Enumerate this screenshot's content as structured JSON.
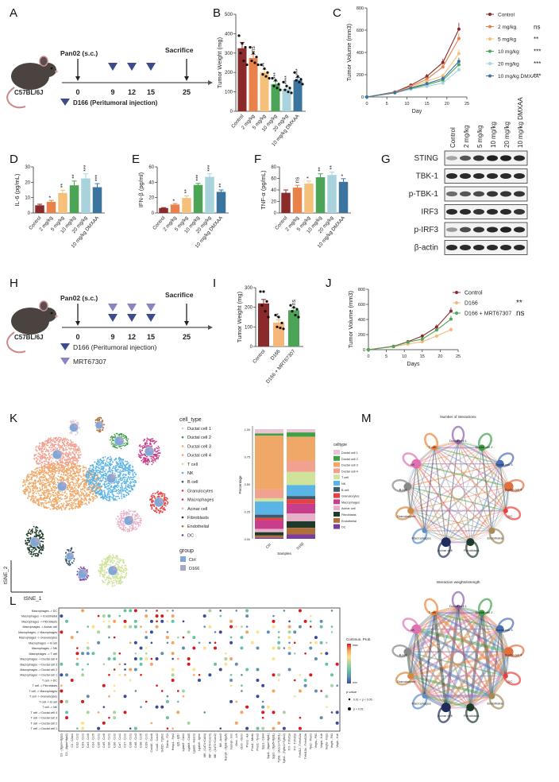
{
  "panel_labels": {
    "A": "A",
    "B": "B",
    "C": "C",
    "D": "D",
    "E": "E",
    "F": "F",
    "G": "G",
    "H": "H",
    "I": "I",
    "J": "J",
    "K": "K",
    "L": "L",
    "M": "M"
  },
  "schematic_A": {
    "strain": "C57BL/6J",
    "inoculation": "Pan02 (s.c.)",
    "endpoint": "Sacrifice",
    "days": [
      "0",
      "9",
      "12",
      "15",
      "25"
    ],
    "legend": [
      {
        "label": "D166 (Peritumoral injection)",
        "color": "#3d4a8c"
      }
    ]
  },
  "schematic_H": {
    "strain": "C57BL/6J",
    "inoculation": "Pan02 (s.c.)",
    "endpoint": "Sacrifice",
    "days": [
      "0",
      "9",
      "12",
      "15",
      "25"
    ],
    "legend": [
      {
        "label": "D166 (Peritumoral injection)",
        "color": "#3d4a8c"
      },
      {
        "label": "MRT67307",
        "color": "#8a84c0"
      }
    ]
  },
  "western_G": {
    "lanes": [
      "Control",
      "2 mg/kg",
      "5 mg/kg",
      "10 mg/kg",
      "20 mg/kg",
      "10 mg/kg DMXAA"
    ],
    "rows": [
      {
        "label": "STING",
        "intensity": [
          0.35,
          0.7,
          0.85,
          0.95,
          0.95,
          0.9
        ]
      },
      {
        "label": "TBK-1",
        "intensity": [
          0.9,
          0.9,
          0.9,
          0.9,
          0.9,
          0.9
        ]
      },
      {
        "label": "p-TBK-1",
        "intensity": [
          0.6,
          0.7,
          0.75,
          0.85,
          0.85,
          0.85
        ]
      },
      {
        "label": "IRF3",
        "intensity": [
          0.9,
          0.9,
          0.85,
          0.9,
          0.9,
          0.85
        ]
      },
      {
        "label": "p-IRF3",
        "intensity": [
          0.4,
          0.75,
          0.85,
          0.9,
          0.95,
          0.9
        ]
      },
      {
        "label": "β-actin",
        "intensity": [
          0.9,
          0.9,
          0.9,
          0.9,
          0.9,
          0.9
        ]
      }
    ]
  },
  "chart_data": [
    {
      "id": "B",
      "type": "bar",
      "ylabel": "Tumor Weight  (mg)",
      "ylim": [
        0,
        500
      ],
      "yticks": [
        0,
        100,
        200,
        300,
        400,
        500
      ],
      "categories": [
        "Control",
        "2 mg/kg",
        "5 mg/kg",
        "10 mg/kg",
        "20 mg/kg",
        "10 mg/kg DMXAA"
      ],
      "values": [
        325,
        275,
        200,
        140,
        115,
        160
      ],
      "errors": [
        30,
        18,
        16,
        15,
        12,
        14
      ],
      "significance": [
        "",
        "ns",
        "**",
        "***",
        "****",
        "***"
      ],
      "colors": [
        "#8b2a2a",
        "#e8814a",
        "#f5c07a",
        "#4ca556",
        "#a9d3dc",
        "#3c74a0"
      ],
      "points": [
        [
          390,
          350,
          330,
          300,
          260,
          240
        ],
        [
          330,
          300,
          280,
          260,
          250,
          240
        ],
        [
          240,
          220,
          200,
          190,
          180,
          170
        ],
        [
          170,
          160,
          140,
          130,
          120,
          110
        ],
        [
          150,
          130,
          120,
          110,
          100,
          95
        ],
        [
          200,
          180,
          165,
          160,
          150,
          140
        ]
      ]
    },
    {
      "id": "C",
      "type": "line",
      "xlabel": "Day",
      "ylabel": "Tumor  Volume (mm3)",
      "xlim": [
        0,
        25
      ],
      "ylim": [
        0,
        800
      ],
      "xticks": [
        0,
        5,
        10,
        15,
        20,
        25
      ],
      "yticks": [
        0,
        200,
        400,
        600,
        800
      ],
      "x": [
        0,
        7,
        11,
        15,
        19,
        23
      ],
      "series": [
        {
          "name": "Control",
          "values": [
            0,
            45,
            105,
            185,
            310,
            610
          ],
          "color": "#8b2a2a",
          "sig": ""
        },
        {
          "name": "2 mg/kg",
          "values": [
            0,
            42,
            95,
            160,
            270,
            525
          ],
          "color": "#e8814a",
          "sig": "ns"
        },
        {
          "name": "5 mg/kg",
          "values": [
            0,
            40,
            85,
            140,
            190,
            390
          ],
          "color": "#f5c07a",
          "sig": "**"
        },
        {
          "name": "10 mg/kg",
          "values": [
            0,
            38,
            75,
            110,
            150,
            290
          ],
          "color": "#4ca556",
          "sig": "***"
        },
        {
          "name": "20 mg/kg",
          "values": [
            0,
            35,
            70,
            95,
            125,
            245
          ],
          "color": "#a9d3dc",
          "sig": "***"
        },
        {
          "name": "10 mg/kg DMXAA",
          "values": [
            0,
            38,
            80,
            120,
            165,
            320
          ],
          "color": "#3c74a0",
          "sig": "***"
        }
      ],
      "legend": "right"
    },
    {
      "id": "D",
      "type": "bar",
      "ylabel": "IL-6 (pg/mL)",
      "ylim": [
        0,
        30
      ],
      "yticks": [
        0,
        10,
        20,
        30
      ],
      "categories": [
        "Control",
        "2 mg/kg",
        "5 mg/kg",
        "10 mg/kg",
        "20 mg/kg",
        "10 mg/kg DMXAA"
      ],
      "values": [
        5,
        7.2,
        13,
        18,
        22.5,
        16.8
      ],
      "errors": [
        0.7,
        1,
        1.8,
        2.8,
        3,
        2.3
      ],
      "significance": [
        "",
        "*",
        "**",
        "**",
        "***",
        "***"
      ],
      "colors": [
        "#8b2a2a",
        "#e8814a",
        "#f5c07a",
        "#4ca556",
        "#a9d3dc",
        "#3c74a0"
      ]
    },
    {
      "id": "E",
      "type": "bar",
      "ylabel": "IFN-β (pg/ml)",
      "ylim": [
        0,
        60
      ],
      "yticks": [
        0,
        20,
        40,
        60
      ],
      "categories": [
        "Control",
        "2 mg/kg",
        "5 mg/kg",
        "10 mg/kg",
        "20 mg/kg",
        "10 mg/kg DMXAA"
      ],
      "values": [
        6.5,
        11,
        19.5,
        36.5,
        47,
        27.5
      ],
      "errors": [
        0.5,
        1.3,
        2.8,
        2,
        4,
        2.5
      ],
      "significance": [
        "",
        "*",
        "**",
        "***",
        "***",
        "**"
      ],
      "colors": [
        "#8b2a2a",
        "#e8814a",
        "#f5c07a",
        "#4ca556",
        "#a9d3dc",
        "#3c74a0"
      ]
    },
    {
      "id": "F",
      "type": "bar",
      "ylabel": "TNF-α (pg/mL)",
      "ylim": [
        0,
        80
      ],
      "yticks": [
        0,
        20,
        40,
        60,
        80
      ],
      "categories": [
        "Control",
        "2 mg/kg",
        "5 mg/kg",
        "10 mg/kg",
        "20 mg/kg",
        "10 mg/kg DMXAA"
      ],
      "values": [
        35,
        44,
        51,
        62,
        66,
        54
      ],
      "errors": [
        5,
        4,
        4.5,
        6,
        5,
        5.5
      ],
      "significance": [
        "",
        "ns",
        "*",
        "**",
        "**",
        "*"
      ],
      "colors": [
        "#8b2a2a",
        "#e8814a",
        "#f5c07a",
        "#4ca556",
        "#a9d3dc",
        "#3c74a0"
      ]
    },
    {
      "id": "I",
      "type": "bar",
      "ylabel": "Tumor Weight  (mg)",
      "ylim": [
        0,
        300
      ],
      "yticks": [
        0,
        100,
        200,
        300
      ],
      "categories": [
        "Control",
        "D166",
        "D166 + MRT67307"
      ],
      "values": [
        220,
        122,
        185
      ],
      "errors": [
        20,
        14,
        12
      ],
      "significance": [
        "",
        "**",
        "ns"
      ],
      "colors": [
        "#8b2a2a",
        "#f5b77a",
        "#4ca556"
      ],
      "points": [
        [
          280,
          280,
          230,
          210,
          180,
          150
        ],
        [
          160,
          150,
          120,
          100,
          95,
          90
        ],
        [
          210,
          200,
          190,
          180,
          160,
          150
        ]
      ]
    },
    {
      "id": "J",
      "type": "line",
      "xlabel": "Days",
      "ylabel": "Tumor  Volume (mm3)",
      "xlim": [
        0,
        25
      ],
      "ylim": [
        0,
        800
      ],
      "xticks": [
        0,
        5,
        10,
        15,
        20,
        25
      ],
      "yticks": [
        0,
        200,
        400,
        600,
        800
      ],
      "x": [
        0,
        7,
        11,
        15,
        19,
        23
      ],
      "series": [
        {
          "name": "Control",
          "values": [
            0,
            45,
            105,
            180,
            300,
            510
          ],
          "color": "#8b2a2a",
          "sig": ""
        },
        {
          "name": "D166",
          "values": [
            0,
            40,
            75,
            105,
            180,
            265
          ],
          "color": "#f5b77a",
          "sig": "**"
        },
        {
          "name": "D166 + MRT67307",
          "values": [
            0,
            42,
            100,
            140,
            260,
            405
          ],
          "color": "#4ca556",
          "sig": "ns"
        }
      ],
      "legend": "right"
    },
    {
      "id": "K-bar",
      "type": "bar",
      "stacked": true,
      "ylabel": "Percentage",
      "xlabel": "Samples",
      "ylim": [
        0,
        1
      ],
      "yticks": [
        "0.00",
        "0.25",
        "0.50",
        "0.75",
        "1.00"
      ],
      "categories": [
        "Ctrl",
        "D166"
      ],
      "legend_title": "celltype",
      "series": [
        {
          "name": "Ductal cell 1",
          "color": "#e8c4d4",
          "values": [
            0.04,
            0.03
          ]
        },
        {
          "name": "Ductal cell 2",
          "color": "#3fa048",
          "values": [
            0.02,
            0.04
          ]
        },
        {
          "name": "Ductal cell 3",
          "color": "#f0a868",
          "values": [
            0.49,
            0.22
          ]
        },
        {
          "name": "Ductal cell 4",
          "color": "#f2a090",
          "values": [
            0.08,
            0.1
          ]
        },
        {
          "name": "T cell",
          "color": "#cfe39a",
          "values": [
            0.03,
            0.12
          ]
        },
        {
          "name": "NK",
          "color": "#5ab4e5",
          "values": [
            0.12,
            0.1
          ]
        },
        {
          "name": "B cell",
          "color": "#3d5a6a",
          "values": [
            0.03,
            0.03
          ]
        },
        {
          "name": "Granulocytes",
          "color": "#e84040",
          "values": [
            0.02,
            0.04
          ]
        },
        {
          "name": "Macrophages",
          "color": "#c73f8c",
          "values": [
            0.08,
            0.09
          ]
        },
        {
          "name": "Acinar cell",
          "color": "#e8b0c8",
          "values": [
            0.03,
            0.07
          ]
        },
        {
          "name": "Fibroblasts",
          "color": "#1e3a2a",
          "values": [
            0.03,
            0.06
          ]
        },
        {
          "name": "Endothelial",
          "color": "#b0703a",
          "values": [
            0.02,
            0.06
          ]
        },
        {
          "name": "DC",
          "color": "#7a3d9c",
          "values": [
            0.01,
            0.04
          ]
        }
      ]
    }
  ],
  "tsne_K": {
    "legend_title": "cell_type",
    "cell_types": [
      "Ductal cell 1",
      "Ductal cell 2",
      "Ductal cell 3",
      "Ductal cell 4",
      "T cell",
      "NK",
      "B cell",
      "Granulocytes",
      "Macrophages",
      "Acinar cell",
      "Fibroblasts",
      "Endothelial",
      "DC"
    ],
    "group_title": "group",
    "groups": [
      {
        "label": "Ctrl",
        "color": "#7fa7d8"
      },
      {
        "label": "D166",
        "color": "#a6a6c8"
      }
    ],
    "xlabel": "tSNE_1",
    "ylabel": "tSNE_2"
  },
  "dotplot_L": {
    "rows": [
      "Macrophages -> DC",
      "Macrophages -> Endothelial",
      "Macrophages -> Fibroblasts",
      "Macrophages -> Acinar cell",
      "Macrophages -> Macrophages",
      "Macrophages -> Granulocytes",
      "Macrophages -> B cell",
      "Macrophages -> NK",
      "Macrophages -> T cell",
      "Macrophages -> Ductal cell 4",
      "Macrophages -> Ductal cell 3",
      "Macrophages -> Ductal cell 2",
      "Macrophages -> Ductal cell 1",
      "T cell -> DC",
      "T cell -> Fibroblasts",
      "T cell -> Macrophages",
      "T cell -> Granulocytes",
      "T cell -> B cell",
      "T cell -> NK",
      "T cell -> Ductal cell 4",
      "T cell -> Ductal cell 3",
      "T cell -> Ductal cell 2",
      "T cell -> Ductal cell 1"
    ],
    "columns": [
      "C3 - (Itgam+Itgb2)",
      "C3 - (Itgax+Itgb2)",
      "C3 - C3ar1",
      "Ccl2 - Ccr2",
      "Ccl3 - Ccr1",
      "Ccl3 - Ccr5",
      "Ccl4 - Ccr5",
      "Ccl5 - Ccr1",
      "Ccl5 - Ccr5",
      "Ccl6 - Ccr1",
      "Ccl6 - Ccr2",
      "Ccl7 - Ccr1",
      "Ccl7 - Ccr2",
      "Ccl8 - Ccr1",
      "Ccl8 - Ccr2",
      "Ccl8 - Ccr5",
      "Ccl9 - Ccr1",
      "Cxcl16 - Cxcr6",
      "Cxcl2 - Cxcr2",
      "Gdf15 - Tgfbr2",
      "Gzma - F2r",
      "Hebp1 - Fpr2",
      "Igf1 - Igf1r",
      "Lgals9 - Cd44",
      "Lgals9 - Cd45",
      "Lgals9 - Havcr2",
      "Lgals9 - Ighm",
      "Mif - (Cd74+Cd44)",
      "Mif - (Cd74+Cxcr4)",
      "Mif - (Cd74+Cxcr2)",
      "Mif - Ackr3",
      "Nampt - (Itgb1+Itga5)",
      "Nampt - Insr",
      "Osm - Lifr",
      "Osm - Osmr",
      "Pros1 - Axl",
      "Pros1 - Mertk",
      "Pros1 - Tyro3",
      "Spp1 - Cd44",
      "Spp1 - (Itgav+Itgb1)",
      "Spp1 - (Itga5+Itgb1)",
      "Tgfb1 - (Acvr1+Tgfbr1)",
      "Tgfb1 - (Tgfbr1+Tgfbr2)",
      "Tnf - Tnfrsf1a",
      "Tnf - Tnfrsf1b",
      "Tnfsf12 - Tnfrsf12a",
      "Tnfsf13b - Tnfrsf13b",
      "Tyk2 - Ifnar1",
      "Vegfa - Flt1",
      "Vegfa - Kdr",
      "Vegfa - Nrp1",
      "Vegfb - Flt1",
      "Vegfc - Kdr"
    ],
    "colorbar_title": "Commun. Prob.",
    "colorbar_max": "max",
    "colorbar_min": "min",
    "pvalue_title": "p-value",
    "pvalue_levels": [
      "0.01 < p < 0.05",
      "p < 0.01"
    ],
    "colors": {
      "low": "#3b4b9a",
      "mid1": "#66c2a5",
      "mid2": "#fee08b",
      "high": "#d7191c"
    }
  },
  "network_M": {
    "titles": [
      "Number of interactions",
      "Interaction weights/strength"
    ],
    "nodes": [
      {
        "label": "Ductal cell 1",
        "color": "#8e5fb0"
      },
      {
        "label": "Ductal cell 2",
        "color": "#3fa048"
      },
      {
        "label": "Ductal cell 3",
        "color": "#4a6fb3"
      },
      {
        "label": "Ductal cell 4",
        "color": "#e07040"
      },
      {
        "label": "DC",
        "color": "#e84040"
      },
      {
        "label": "Endothelial",
        "color": "#a58a5a"
      },
      {
        "label": "Fibroblasts",
        "color": "#1e3a2a"
      },
      {
        "label": "Acinar cell",
        "color": "#202c5c"
      },
      {
        "label": "Macrophages",
        "color": "#5a8fc8"
      },
      {
        "label": "Granulocytes",
        "color": "#d08a40"
      },
      {
        "label": "B cell",
        "color": "#888888"
      },
      {
        "label": "NK",
        "color": "#e070b0"
      },
      {
        "label": "T cell",
        "color": "#f08030"
      }
    ]
  }
}
